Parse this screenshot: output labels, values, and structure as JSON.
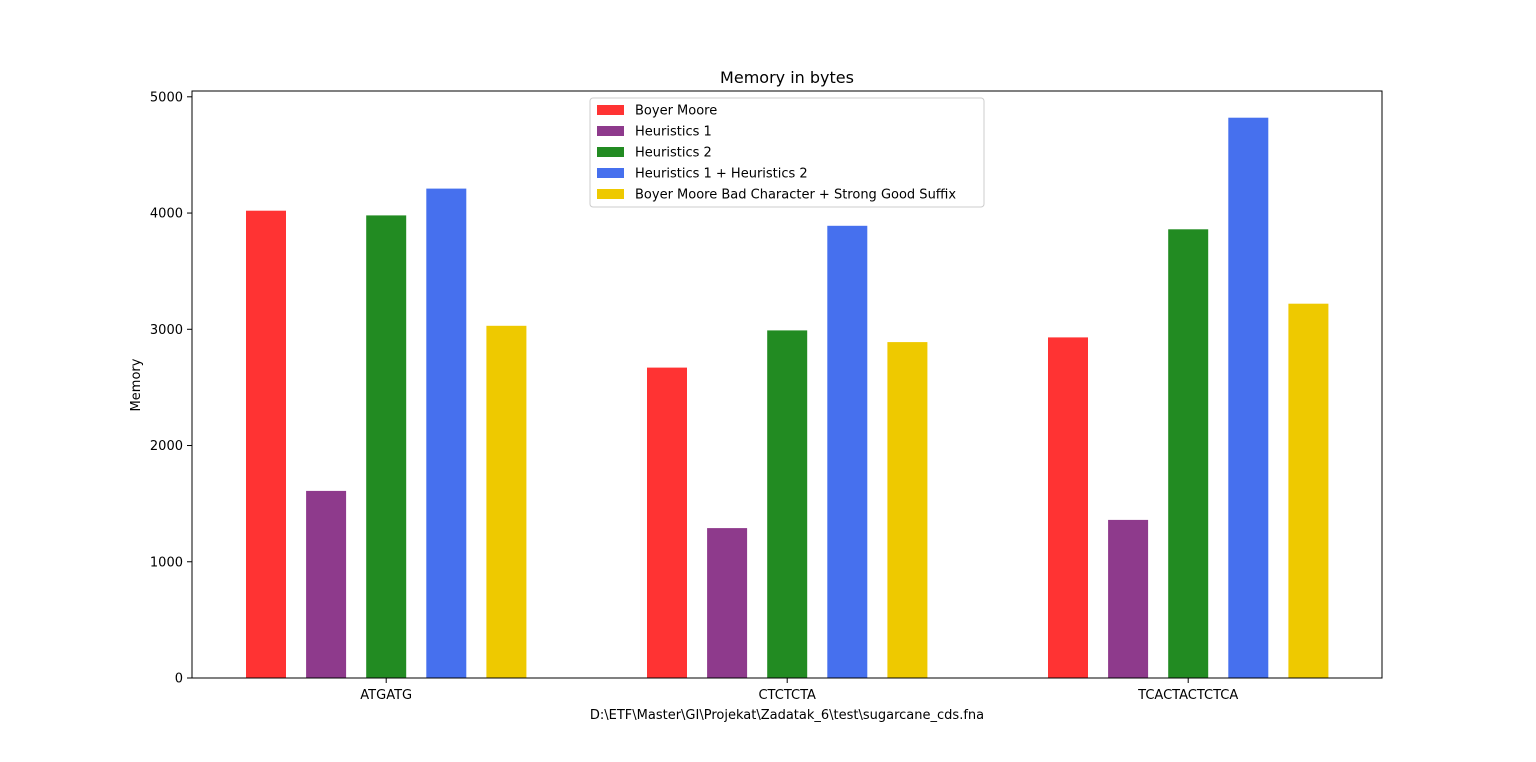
{
  "chart_data": {
    "type": "bar",
    "title": "Memory in bytes",
    "xlabel": "D:\\ETF\\Master\\GI\\Projekat\\Zadatak_6\\test\\sugarcane_cds.fna",
    "ylabel": "Memory",
    "ylim": [
      0,
      5050
    ],
    "yticks": [
      0,
      1000,
      2000,
      3000,
      4000,
      5000
    ],
    "ytick_labels": [
      "0",
      "1000",
      "2000",
      "3000",
      "4000",
      "5000"
    ],
    "categories": [
      "ATGATG",
      "CTCTCTA",
      "TCACTACTCTCA"
    ],
    "series": [
      {
        "name": "Boyer Moore",
        "color": "#ff3333",
        "values": [
          4020,
          2670,
          2930
        ]
      },
      {
        "name": "Heuristics 1",
        "color": "#8e3a8c",
        "values": [
          1610,
          1290,
          1360
        ]
      },
      {
        "name": "Heuristics 2",
        "color": "#228b22",
        "values": [
          3980,
          2990,
          3860
        ]
      },
      {
        "name": "Heuristics 1 + Heuristics 2",
        "color": "#4670ee",
        "values": [
          4210,
          3890,
          4820
        ]
      },
      {
        "name": "Boyer Moore Bad Character + Strong Good Suffix",
        "color": "#eec900",
        "values": [
          3030,
          2890,
          3220
        ]
      }
    ],
    "legend_position": "upper-center",
    "grid": false
  }
}
